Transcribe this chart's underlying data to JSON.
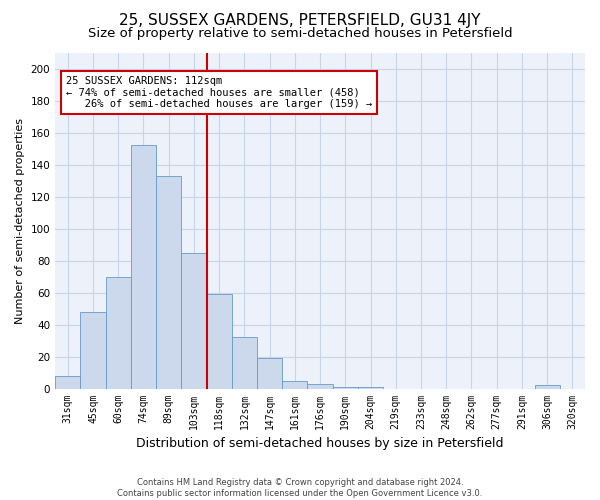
{
  "title": "25, SUSSEX GARDENS, PETERSFIELD, GU31 4JY",
  "subtitle": "Size of property relative to semi-detached houses in Petersfield",
  "xlabel": "Distribution of semi-detached houses by size in Petersfield",
  "ylabel": "Number of semi-detached properties",
  "bar_labels": [
    "31sqm",
    "45sqm",
    "60sqm",
    "74sqm",
    "89sqm",
    "103sqm",
    "118sqm",
    "132sqm",
    "147sqm",
    "161sqm",
    "176sqm",
    "190sqm",
    "204sqm",
    "219sqm",
    "233sqm",
    "248sqm",
    "262sqm",
    "277sqm",
    "291sqm",
    "306sqm",
    "320sqm"
  ],
  "bar_heights": [
    8,
    48,
    70,
    152,
    133,
    85,
    59,
    32,
    19,
    5,
    3,
    1,
    1,
    0,
    0,
    0,
    0,
    0,
    0,
    2,
    0
  ],
  "bar_color": "#ccd9ec",
  "bar_edgecolor": "#6699cc",
  "vline_pos": 5.5,
  "vline_color": "#cc0000",
  "annotation_line1": "25 SUSSEX GARDENS: 112sqm",
  "annotation_line2": "← 74% of semi-detached houses are smaller (458)",
  "annotation_line3": "   26% of semi-detached houses are larger (159) →",
  "annotation_box_edgecolor": "#cc0000",
  "ylim": [
    0,
    210
  ],
  "yticks": [
    0,
    20,
    40,
    60,
    80,
    100,
    120,
    140,
    160,
    180,
    200
  ],
  "footer_line1": "Contains HM Land Registry data © Crown copyright and database right 2024.",
  "footer_line2": "Contains public sector information licensed under the Open Government Licence v3.0.",
  "bg_color": "#edf2fa",
  "grid_color": "#c8d4e8",
  "title_fontsize": 11,
  "subtitle_fontsize": 9.5,
  "tick_fontsize": 7,
  "ylabel_fontsize": 8,
  "xlabel_fontsize": 9,
  "footer_fontsize": 6,
  "annotation_fontsize": 7.5
}
